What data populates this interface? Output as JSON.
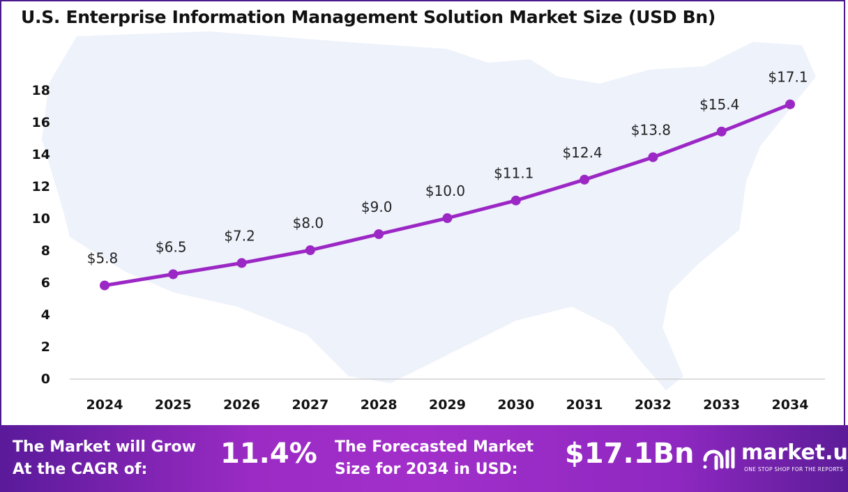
{
  "chart_data": {
    "type": "line",
    "title": "U.S. Enterprise Information Management Solution Market Size (USD Bn)",
    "categories": [
      "2024",
      "2025",
      "2026",
      "2027",
      "2028",
      "2029",
      "2030",
      "2031",
      "2032",
      "2033",
      "2034"
    ],
    "values": [
      5.8,
      6.5,
      7.2,
      8.0,
      9.0,
      10.0,
      11.1,
      12.4,
      13.8,
      15.4,
      17.1
    ],
    "data_labels": [
      "$5.8",
      "$6.5",
      "$7.2",
      "$8.0",
      "$9.0",
      "$10.0",
      "$11.1",
      "$12.4",
      "$13.8",
      "$15.4",
      "$17.1"
    ],
    "y_ticks": [
      "0",
      "2",
      "4",
      "6",
      "8",
      "10",
      "12",
      "14",
      "16",
      "18"
    ],
    "ylim": [
      0,
      18
    ],
    "xlabel": "",
    "ylabel": "",
    "grid": false,
    "line_color": "#9b27c4"
  },
  "footer": {
    "cagr_text_1": "The Market will Grow",
    "cagr_text_2": "At the CAGR of:",
    "cagr_value": "11.4%",
    "forecast_text_1": "The Forecasted Market",
    "forecast_text_2": "Size for 2034 in USD:",
    "forecast_value": "$17.1Bn",
    "brand": "market.us",
    "tagline": "ONE STOP SHOP FOR THE REPORTS"
  }
}
